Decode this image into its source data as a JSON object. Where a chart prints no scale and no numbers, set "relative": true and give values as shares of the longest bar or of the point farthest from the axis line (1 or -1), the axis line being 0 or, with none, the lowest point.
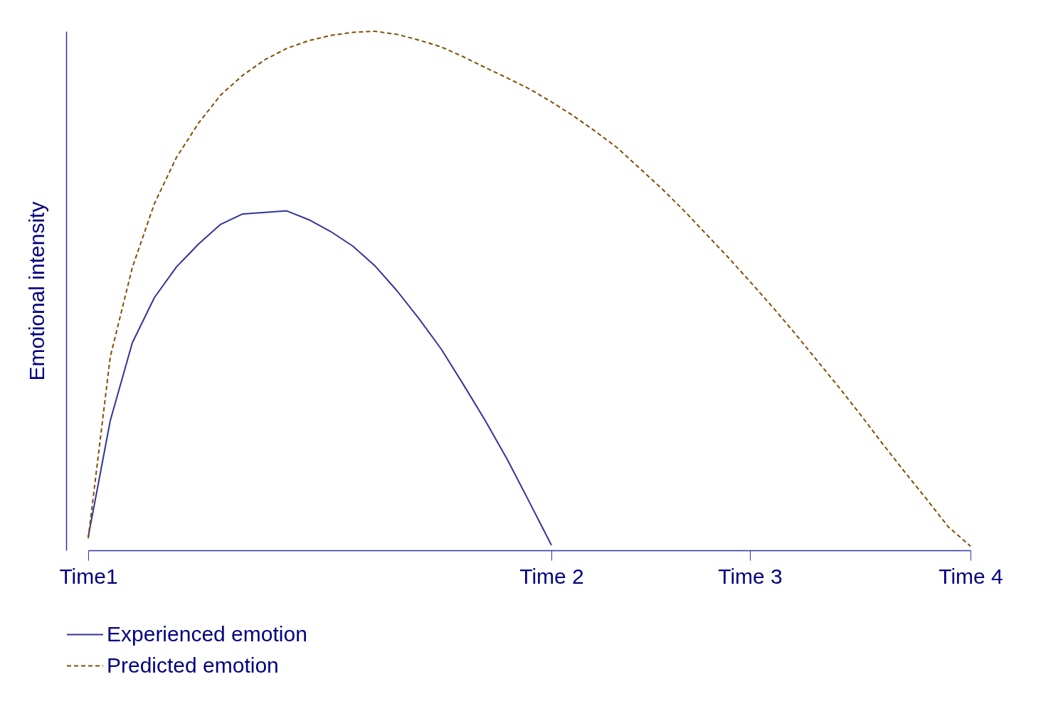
{
  "chart_data": {
    "type": "line",
    "relative": true,
    "ylabel": "Emotional intensity",
    "categories": [
      "Time1",
      null,
      null,
      null,
      null,
      null,
      null,
      null,
      null,
      null,
      null,
      null,
      null,
      null,
      null,
      null,
      null,
      null,
      null,
      null,
      null,
      "Time 2",
      null,
      null,
      null,
      null,
      null,
      null,
      null,
      null,
      "Time 3",
      null,
      null,
      null,
      null,
      null,
      null,
      null,
      null,
      null,
      "Time 4"
    ],
    "legend": "bottom",
    "series": [
      {
        "name": "Experienced emotion",
        "color": "#333399",
        "line_style": "solid",
        "values": [
          0.026,
          0.25,
          0.4,
          0.487,
          0.546,
          0.59,
          0.628,
          0.648,
          0.651,
          0.654,
          0.637,
          0.614,
          0.586,
          0.548,
          0.5,
          0.446,
          0.388,
          0.32,
          0.25,
          0.175,
          0.093,
          0.01,
          null,
          null,
          null,
          null,
          null,
          null,
          null,
          null,
          null,
          null,
          null,
          null,
          null,
          null,
          null,
          null,
          null,
          null,
          null
        ]
      },
      {
        "name": "Predicted emotion",
        "color": "#7f4f00",
        "line_style": "dashed",
        "values": [
          0.023,
          0.373,
          0.545,
          0.668,
          0.757,
          0.823,
          0.877,
          0.915,
          0.945,
          0.967,
          0.982,
          0.992,
          0.998,
          1,
          0.994,
          0.983,
          0.97,
          0.951,
          0.93,
          0.91,
          0.889,
          0.864,
          0.837,
          0.807,
          0.775,
          0.736,
          0.697,
          0.655,
          0.61,
          0.565,
          0.518,
          0.47,
          0.42,
          0.368,
          0.316,
          0.262,
          0.206,
          0.152,
          0.099,
          0.045,
          0.008
        ]
      }
    ]
  }
}
